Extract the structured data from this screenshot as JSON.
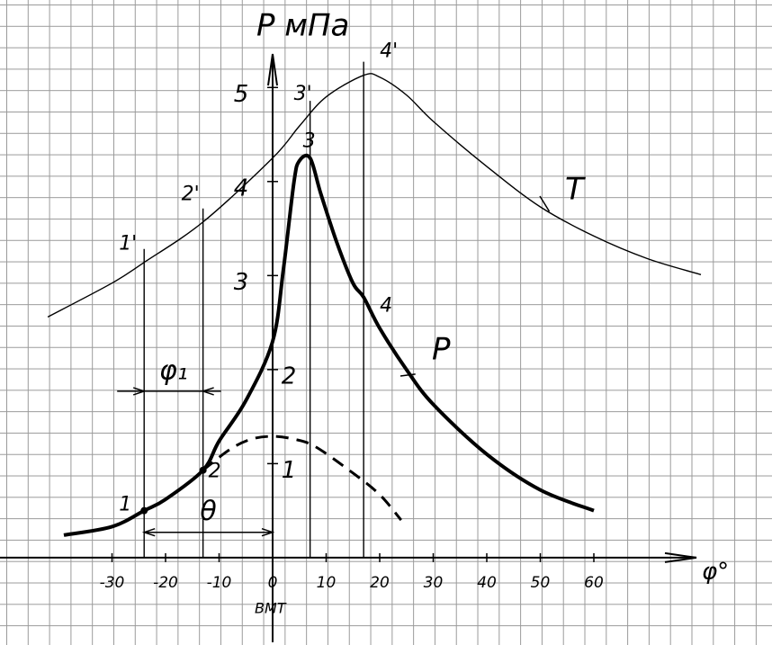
{
  "chart_data": {
    "type": "line",
    "y_label": "P мПа",
    "x_label": "φ°",
    "x_note": "ВМТ",
    "xlim": [
      -50,
      80
    ],
    "ylim": [
      -0.9,
      5.5
    ],
    "xticks": [
      -30,
      -20,
      -10,
      0,
      10,
      20,
      30,
      40,
      50,
      60
    ],
    "yticks": [
      1,
      2,
      3,
      4,
      5
    ],
    "series": [
      {
        "name": "P",
        "color": "#000000",
        "style": "thick",
        "x": [
          -39,
          -30,
          -24,
          -20,
          -13,
          -10,
          -5,
          0,
          2,
          4,
          5,
          7,
          9,
          12,
          15,
          17,
          20,
          25,
          30,
          40,
          50,
          60
        ],
        "values": [
          0.24,
          0.33,
          0.5,
          0.62,
          0.93,
          1.24,
          1.67,
          2.3,
          3.06,
          4.0,
          4.22,
          4.25,
          3.87,
          3.35,
          2.92,
          2.77,
          2.44,
          2.0,
          1.63,
          1.1,
          0.72,
          0.5
        ]
      },
      {
        "name": "T",
        "color": "#000000",
        "style": "thin",
        "x": [
          -42,
          -30,
          -24,
          -13,
          0,
          5,
          10,
          17,
          20,
          25,
          30,
          40,
          50,
          60,
          70,
          80
        ],
        "values": [
          2.56,
          2.92,
          3.14,
          3.57,
          4.25,
          4.59,
          4.9,
          5.13,
          5.11,
          4.92,
          4.64,
          4.16,
          3.73,
          3.42,
          3.18,
          3.01
        ]
      },
      {
        "color": "#000000",
        "style": "dashed",
        "x": [
          -13,
          -8,
          -4,
          0,
          4,
          8,
          15,
          20,
          24
        ],
        "values": [
          0.93,
          1.15,
          1.26,
          1.29,
          1.26,
          1.18,
          0.9,
          0.67,
          0.4
        ]
      }
    ],
    "points": [
      {
        "x": -24,
        "p_label": "1",
        "t_label": "1'"
      },
      {
        "x": -13,
        "p_label": "2",
        "t_label": "2'"
      },
      {
        "x": 7,
        "p_label": "3",
        "t_label": "3'"
      },
      {
        "x": 17,
        "p_label": "4",
        "t_label": "4'"
      }
    ],
    "dimensions": [
      {
        "label": "φ₁",
        "from": -24,
        "to": -13,
        "y": 1.77
      },
      {
        "label": "θ",
        "from": -24,
        "to": 0,
        "y": 0.27
      }
    ]
  }
}
